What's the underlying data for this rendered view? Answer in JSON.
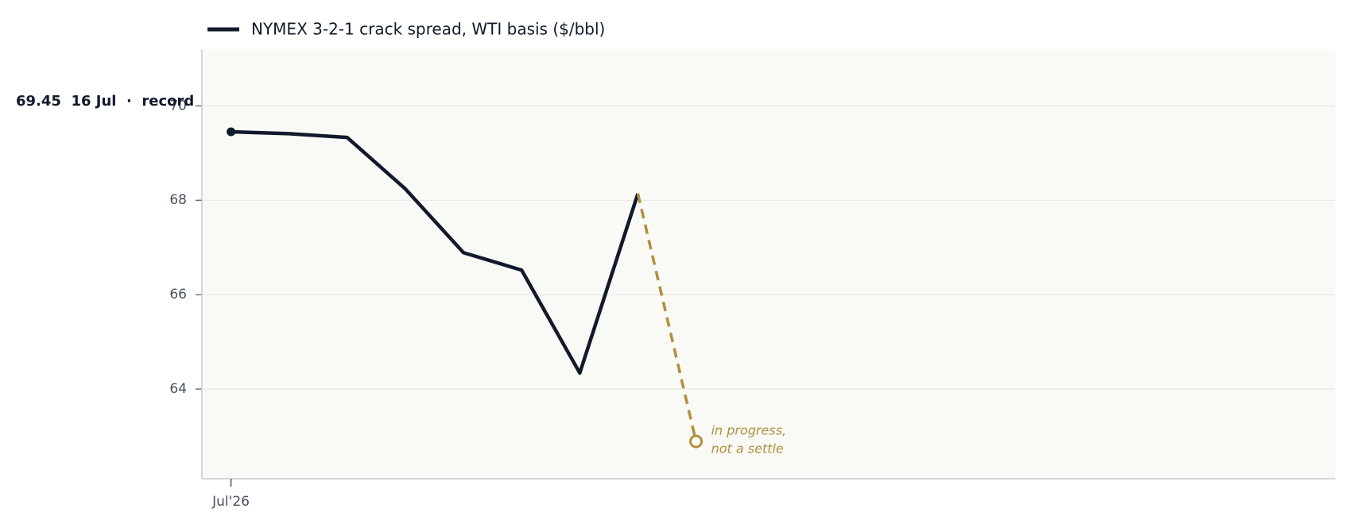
{
  "chart_data": {
    "type": "line",
    "legend_label": "NYMEX 3-2-1 crack spread, WTI basis ($/bbl)",
    "annotation": "69.45  16 Jul  ·  record",
    "note": [
      "in progress,",
      "not a settle"
    ],
    "x": [
      0,
      1,
      2,
      3,
      4,
      5,
      6,
      7,
      8
    ],
    "series": [
      {
        "name": "NYMEX 3-2-1 crack spread, WTI basis ($/bbl)",
        "color": "#111a2b",
        "values": [
          69.45,
          69.41,
          69.33,
          68.24,
          66.89,
          66.52,
          64.34,
          68.14,
          null
        ]
      },
      {
        "color": "#b38f3c",
        "dashed": true,
        "values": [
          null,
          null,
          null,
          null,
          null,
          null,
          null,
          null,
          62.89
        ]
      }
    ],
    "xlim": [
      -0.5,
      19
    ],
    "xticks": [
      {
        "value": 0,
        "label": "Jul'26"
      }
    ],
    "ylim": [
      62.1,
      71.2
    ],
    "yticks": [
      64,
      66,
      68,
      70
    ],
    "grid": true
  }
}
